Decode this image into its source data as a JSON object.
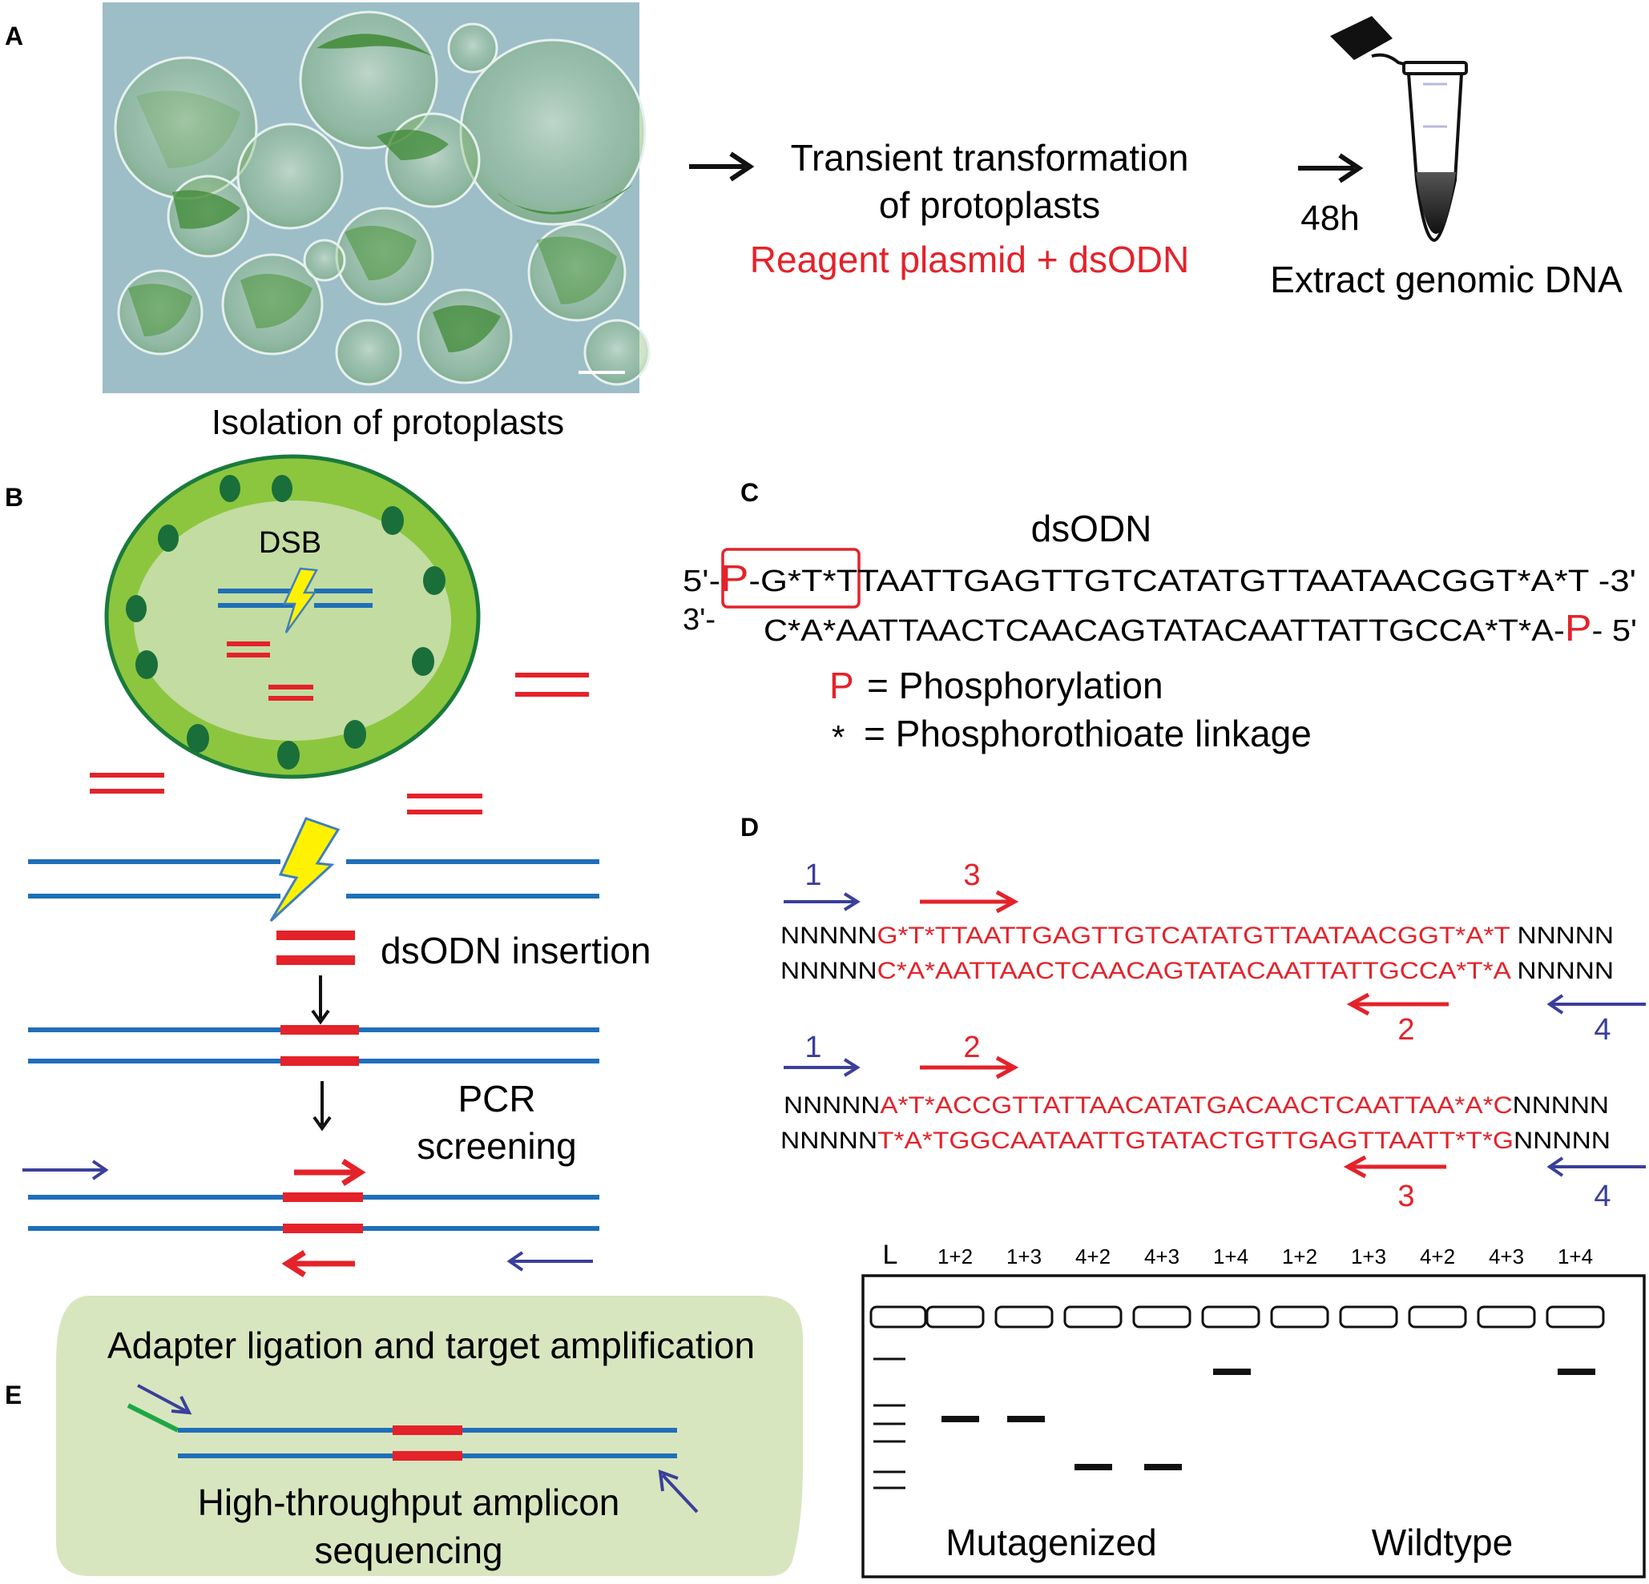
{
  "panels": {
    "a": "A",
    "b": "B",
    "c": "C",
    "d": "D",
    "e": "E"
  },
  "colors": {
    "blue_dna": "#1f6fb8",
    "red": "#e4222a",
    "primer_blue": "#3b3f9a",
    "cell_green": "#8cc63f",
    "nucleus_green": "#c3dca1",
    "chloroplast": "#1a6e3a",
    "box_green": "#d7e6bf",
    "adapter_green": "#1fa645",
    "micro_bg": "#9bbcc6"
  },
  "panel_a": {
    "caption": "Isolation of protoplasts",
    "step1_line1": "Transient transformation",
    "step1_line2": "of protoplasts",
    "step1_reagent": "Reagent plasmid + dsODN",
    "time": "48h",
    "step2": "Extract genomic DNA"
  },
  "panel_b": {
    "dsb": "DSB",
    "insertion": "dsODN insertion",
    "pcr_line1": "PCR",
    "pcr_line2": "screening"
  },
  "panel_c": {
    "title": "dsODN",
    "top_prefix": "5'-",
    "top_p": "P",
    "top_seq": "-G*T*TTAATTGAGTTGTCATATGTTAATAACGGT*A*T -3'",
    "bottom_prefix": "3'-",
    "bottom_seq": "C*A*AATTAACTCAACAGTATACAATTATTGCCA*T*A-",
    "bottom_p": "P",
    "bottom_suffix": "- 5'",
    "legend_p_symbol": "P",
    "legend_p_text": "= Phosphorylation",
    "legend_star_symbol": "*",
    "legend_star_text": "= Phosphorothioate linkage"
  },
  "panel_d": {
    "block1": {
      "top_left": "NNNNN",
      "top_mid": "G*T*TTAATTGAGTTGTCATATGTTAATAACGGT*A*T",
      "top_right": " NNNNN",
      "bot_left": "NNNNN",
      "bot_mid": "C*A*AATTAACTCAACAGTATACAATTATTGCCA*T*A",
      "bot_right": " NNNNN",
      "primer_left_outer": "1",
      "primer_left_inner": "3",
      "primer_right_inner": "2",
      "primer_right_outer": "4"
    },
    "block2": {
      "top_left": "NNNNN",
      "top_mid": "A*T*ACCGTTATTAACATATGACAACTCAATTAA*A*C",
      "top_right": "NNNNN",
      "bot_left": "NNNNN",
      "bot_mid": "T*A*TGGCAATAATTGTATACTGTTGAGTTAATT*T*G",
      "bot_right": "NNNNN",
      "primer_left_outer": "1",
      "primer_left_inner": "2",
      "primer_right_inner": "3",
      "primer_right_outer": "4"
    },
    "gel": {
      "ladder_label": "L",
      "lanes": [
        "1+2",
        "1+3",
        "4+2",
        "4+3",
        "1+4",
        "1+2",
        "1+3",
        "4+2",
        "4+3",
        "1+4"
      ],
      "group1": "Mutagenized",
      "group2": "Wildtype"
    }
  },
  "panel_e": {
    "line1": "Adapter ligation and target amplification",
    "line2": "High-throughput amplicon",
    "line3": "sequencing"
  }
}
